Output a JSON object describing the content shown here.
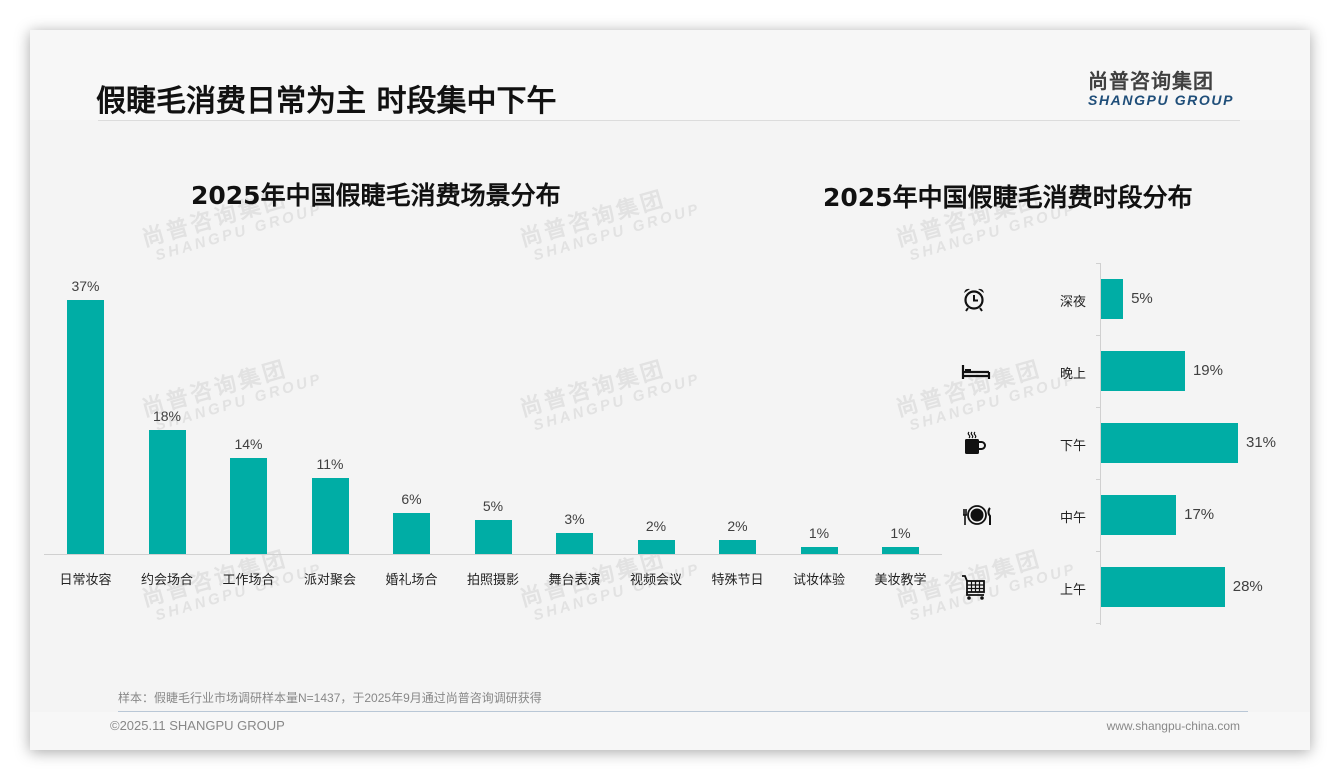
{
  "header": {
    "title": "假睫毛消费日常为主 时段集中下午",
    "logo_cn": "尚普咨询集团",
    "logo_en": "SHANGPU GROUP"
  },
  "watermark": {
    "cn": "尚普咨询集团",
    "en": "SHANGPU GROUP"
  },
  "colors": {
    "bar": "#00ada5",
    "logo_en": "#1f4e79",
    "background": "#f4f4f4"
  },
  "left_chart": {
    "title": "2025年中国假睫毛消费场景分布",
    "bars": [
      {
        "label": "日常妆容",
        "value": 37,
        "display": "37%"
      },
      {
        "label": "约会场合",
        "value": 18,
        "display": "18%"
      },
      {
        "label": "工作场合",
        "value": 14,
        "display": "14%"
      },
      {
        "label": "派对聚会",
        "value": 11,
        "display": "11%"
      },
      {
        "label": "婚礼场合",
        "value": 6,
        "display": "6%"
      },
      {
        "label": "拍照摄影",
        "value": 5,
        "display": "5%"
      },
      {
        "label": "舞台表演",
        "value": 3,
        "display": "3%"
      },
      {
        "label": "视频会议",
        "value": 2,
        "display": "2%"
      },
      {
        "label": "特殊节日",
        "value": 2,
        "display": "2%"
      },
      {
        "label": "试妆体验",
        "value": 1,
        "display": "1%"
      },
      {
        "label": "美妆教学",
        "value": 1,
        "display": "1%"
      }
    ]
  },
  "right_chart": {
    "title": "2025年中国假睫毛消费时段分布",
    "rows": [
      {
        "label": "深夜",
        "value": 5,
        "display": "5%",
        "icon": "alarm-clock-icon"
      },
      {
        "label": "晚上",
        "value": 19,
        "display": "19%",
        "icon": "bed-icon"
      },
      {
        "label": "下午",
        "value": 31,
        "display": "31%",
        "icon": "coffee-cup-icon"
      },
      {
        "label": "中午",
        "value": 17,
        "display": "17%",
        "icon": "plate-fork-knife-icon"
      },
      {
        "label": "上午",
        "value": 28,
        "display": "28%",
        "icon": "shopping-cart-icon"
      }
    ]
  },
  "footer": {
    "note": "样本：假睫毛行业市场调研样本量N=1437，于2025年9月通过尚普咨询调研获得",
    "copyright": "©2025.11 SHANGPU GROUP",
    "website": "www.shangpu-china.com"
  },
  "chart_data": [
    {
      "type": "bar",
      "title": "2025年中国假睫毛消费场景分布",
      "categories": [
        "日常妆容",
        "约会场合",
        "工作场合",
        "派对聚会",
        "婚礼场合",
        "拍照摄影",
        "舞台表演",
        "视频会议",
        "特殊节日",
        "试妆体验",
        "美妆教学"
      ],
      "values": [
        37,
        18,
        14,
        11,
        6,
        5,
        3,
        2,
        2,
        1,
        1
      ],
      "unit": "%",
      "xlabel": "",
      "ylabel": "",
      "ylim": [
        0,
        37
      ],
      "grid": false,
      "data_labels": true,
      "legend": null
    },
    {
      "type": "bar",
      "orientation": "horizontal",
      "title": "2025年中国假睫毛消费时段分布",
      "categories": [
        "深夜",
        "晚上",
        "下午",
        "中午",
        "上午"
      ],
      "values": [
        5,
        19,
        31,
        17,
        28
      ],
      "unit": "%",
      "xlabel": "",
      "ylabel": "",
      "xlim": [
        0,
        31
      ],
      "grid": false,
      "data_labels": true,
      "legend": null
    }
  ]
}
